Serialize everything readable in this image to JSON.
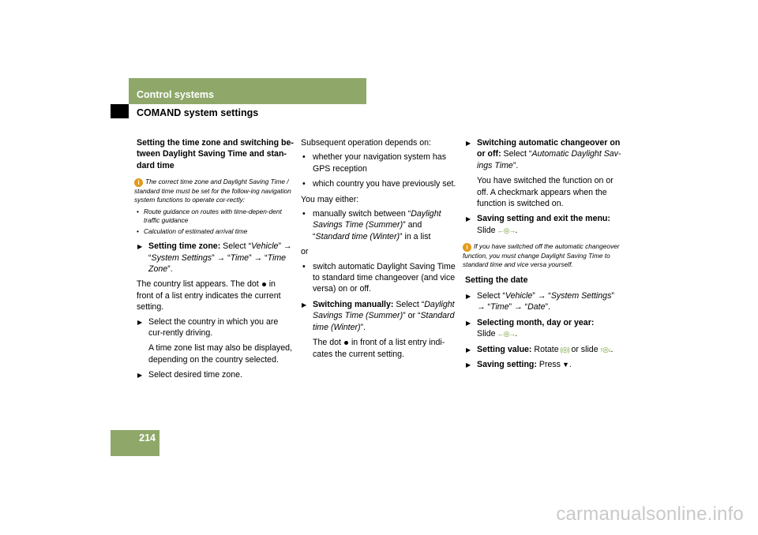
{
  "header": {
    "section": "Control systems",
    "subsection": "COMAND system settings"
  },
  "page_number": "214",
  "col1": {
    "heading": "Setting the time zone and switching be-tween Daylight Saving Time and stan-dard time",
    "note_icon": "i",
    "note_text": "The correct time zone and Daylight Saving Time / standard time must be set for the follow-ing navigation system functions to operate cor-rectly:",
    "note_bullets": [
      "Route guidance on routes with time-depen-dent traffic guidance",
      "Calculation of estimated arrival time"
    ],
    "step1_label": "Setting time zone:",
    "step1_t1": " Select “",
    "step1_i1": "Vehicle",
    "step1_t2": "” → “",
    "step1_i2": "System Settings",
    "step1_t3": "” → “",
    "step1_i3": "Time",
    "step1_t4": "” → “",
    "step1_i4": "Time Zone",
    "step1_t5": "”.",
    "country_p1": "The country list appears. The dot",
    "country_p2": "in front of a list entry indicates the current setting.",
    "step2": "Select the country in which you are cur-rently driving.",
    "step2_sub": "A time zone list may also be displayed, depending on the country selected.",
    "step3": "Select desired time zone."
  },
  "col2": {
    "intro": "Subsequent operation depends on:",
    "bullets1": [
      "whether your navigation system has GPS reception",
      "which country you have previously set."
    ],
    "either": "You may either:",
    "b2_t1": "manually switch between “",
    "b2_i1": "Daylight Savings Time (Summer)",
    "b2_t2": "” and “",
    "b2_i2": "Standard time (Winter)",
    "b2_t3": "” in a list",
    "or": "or",
    "b3": "switch automatic Daylight Saving Time to standard time changeover (and vice versa) on or off.",
    "step_label": "Switching manually:",
    "step_t1": " Select “",
    "step_i1": "Daylight Savings Time (Summer)",
    "step_t2": "” or “",
    "step_i2": "Standard time (Winter)",
    "step_t3": "”.",
    "sub_p1": "The dot",
    "sub_p2": "in front of a list entry indi-cates the current setting."
  },
  "col3": {
    "s1_label": "Switching automatic changeover on or off:",
    "s1_t1": " Select “",
    "s1_i1": "Automatic Daylight Sav-ings Time",
    "s1_t2": "”.",
    "s1_sub": "You have switched the function on or off. A checkmark appears when the function is switched on.",
    "s2_label": "Saving setting and exit the menu:",
    "s2_t1": "Slide",
    "note_icon": "i",
    "note_text": "If you have switched off the automatic changeover function, you must change Daylight Saving Time to standard time and vice versa yourself.",
    "date_heading": "Setting the date",
    "d1_t1": "Select “",
    "d1_i1": "Vehicle",
    "d1_t2": "” → “",
    "d1_i2": "System Settings",
    "d1_t3": "” → “",
    "d1_i3": "Time",
    "d1_t4": "” → “",
    "d1_i4": "Date",
    "d1_t5": "”.",
    "d2_label": "Selecting month, day or year:",
    "d2_t1": "Slide",
    "d3_label": "Setting value:",
    "d3_t1": " Rotate",
    "d3_t2": "or slide",
    "d4_label": "Saving setting:",
    "d4_t1": " Press"
  },
  "icons": {
    "slide_lr": "←◎→",
    "slide_ud": "↑◎↓",
    "rotate": "⟮◎⟯",
    "press": "▼"
  },
  "watermark": "carmanualsonline.info",
  "colors": {
    "accent_green": "#8fa86a",
    "info_orange": "#e39a1a"
  }
}
